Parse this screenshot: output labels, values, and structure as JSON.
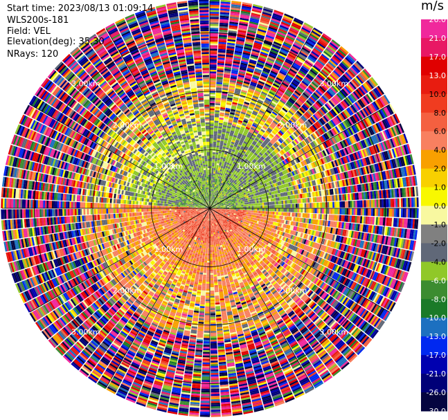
{
  "header": {
    "start_time": "Start time: 2023/08/13 01:09:14",
    "instrument": "WLS200s-181",
    "field": "Field: VEL",
    "elevation": "Elevation(deg): 35.30",
    "nrays": "NRays: 120"
  },
  "colorbar": {
    "unit": "m/s",
    "ticks": [
      "26.0",
      "21.0",
      "17.0",
      "13.0",
      "10.0",
      "8.0",
      "6.0",
      "4.0",
      "2.0",
      "1.0",
      "0.0",
      "-1.0",
      "-2.0",
      "-4.0",
      "-6.0",
      "-8.0",
      "-10.0",
      "-13.0",
      "-17.0",
      "-21.0",
      "-26.0",
      "-30.0"
    ],
    "colors": [
      "#f0289c",
      "#e81864",
      "#e00000",
      "#e81c10",
      "#f03c20",
      "#f46040",
      "#f88060",
      "#f8a000",
      "#f8d000",
      "#f8f800",
      "#f8f8a0",
      "#808080",
      "#606878",
      "#90c828",
      "#3c8c30",
      "#1a7a28",
      "#1c70c0",
      "#0028f0",
      "#0000b0",
      "#000078",
      "#050540"
    ],
    "color_notes": "21 bins between the 22 tick values, top to bottom"
  },
  "chart_data": {
    "type": "heatmap",
    "projection": "polar PPI (plan position indicator)",
    "field": "VEL",
    "units": "m/s",
    "nrays": 120,
    "elevation_deg": 35.3,
    "range_rings_km": [
      1.0,
      2.0,
      3.0
    ],
    "range_ring_labels": [
      "1.00km",
      "2.00km",
      "3.00km"
    ],
    "max_range_km": 3.55,
    "spoke_step_deg": 30,
    "color_scale_min": -30,
    "color_scale_max": 26,
    "regions": [
      {
        "description": "near field, north half",
        "range_km": [
          0,
          1.5
        ],
        "value_ms": -6
      },
      {
        "description": "near field, south half",
        "range_km": [
          0,
          1.5
        ],
        "value_ms": 4
      },
      {
        "description": "core near radar, south",
        "range_km": [
          0,
          0.6
        ],
        "value_ms": 8
      },
      {
        "description": "ring 1.5–2.2 km",
        "range_km": [
          1.5,
          2.2
        ],
        "value_ms": "mixed -4 to 2"
      },
      {
        "description": "beyond 2.2 km",
        "range_km": [
          2.2,
          3.55
        ],
        "value_ms": "noise, full scale"
      }
    ]
  }
}
